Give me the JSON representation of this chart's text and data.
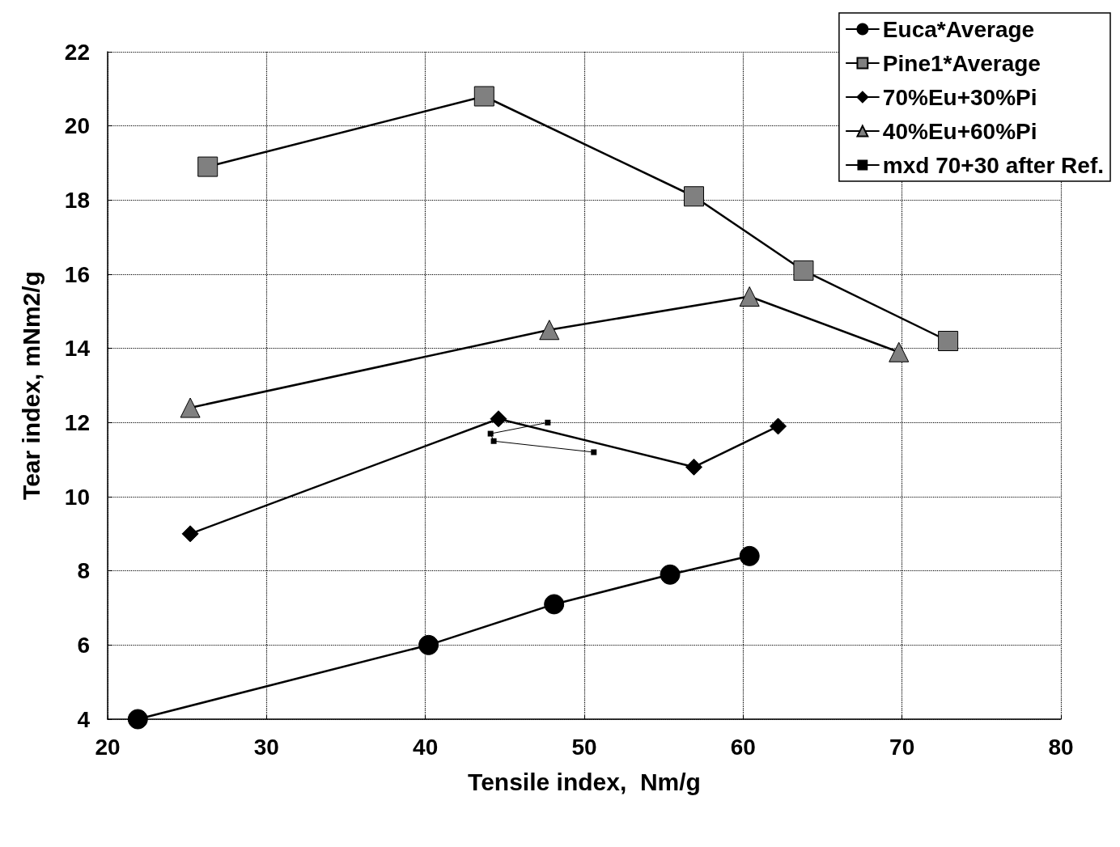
{
  "chart_data": {
    "type": "line",
    "xlabel": "Tensile index,  Nm/g",
    "ylabel": "Tear index, mNm2/g",
    "xlim": [
      20,
      80
    ],
    "xticks": [
      20,
      30,
      40,
      50,
      60,
      70,
      80
    ],
    "ylim": [
      4,
      22
    ],
    "yticks": [
      4,
      6,
      8,
      10,
      12,
      14,
      16,
      18,
      20,
      22
    ],
    "grid": true,
    "legend": "top right",
    "line_style": "solid",
    "series": [
      {
        "name": "Euca*Average",
        "color": "#000000",
        "marker": "circle",
        "x": [
          21.9,
          40.2,
          48.1,
          55.4,
          60.4
        ],
        "values": [
          4.0,
          6.0,
          7.1,
          7.9,
          8.4
        ]
      },
      {
        "name": "Pine1*Average",
        "color": "#808080",
        "marker": "square",
        "x": [
          26.3,
          43.7,
          56.9,
          63.8,
          72.9
        ],
        "values": [
          18.9,
          20.8,
          18.1,
          16.1,
          14.2
        ]
      },
      {
        "name": "70%Eu+30%Pi",
        "color": "#000000",
        "marker": "diamond",
        "x": [
          25.2,
          44.6,
          56.9,
          62.2
        ],
        "values": [
          9.0,
          12.1,
          10.8,
          11.9
        ]
      },
      {
        "name": "40%Eu+60%Pi",
        "color": "#808080",
        "marker": "triangle",
        "x": [
          25.2,
          47.8,
          60.4,
          69.8
        ],
        "values": [
          12.4,
          14.5,
          15.4,
          13.9
        ]
      },
      {
        "name": "mxd 70+30 after Ref.",
        "color": "#000000",
        "marker": "square",
        "x": [
          47.7,
          44.1,
          44.3,
          50.6
        ],
        "values": [
          12.0,
          11.7,
          11.5,
          11.2
        ]
      }
    ]
  }
}
